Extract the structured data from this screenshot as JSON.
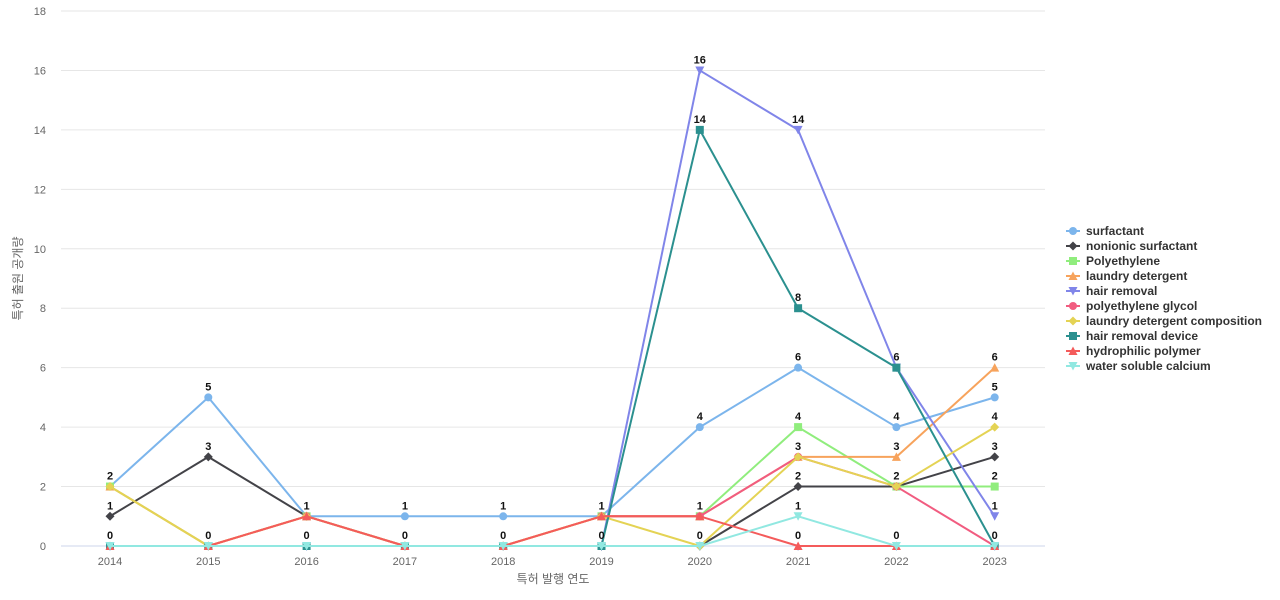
{
  "chart_data": {
    "type": "line",
    "title": "",
    "xlabel": "특허 발행 연도",
    "ylabel": "특허 출원 공개량",
    "x": [
      "2014",
      "2015",
      "2016",
      "2017",
      "2018",
      "2019",
      "2020",
      "2021",
      "2022",
      "2023"
    ],
    "ylim": [
      0,
      18
    ],
    "yticks": [
      0,
      2,
      4,
      6,
      8,
      10,
      12,
      14,
      16,
      18
    ],
    "grid": true,
    "legend_position": "right",
    "series": [
      {
        "name": "surfactant",
        "color": "#7cb5ec",
        "marker": "circle",
        "values": [
          2,
          5,
          1,
          1,
          1,
          1,
          4,
          6,
          4,
          5
        ],
        "labels": [
          "2",
          "5",
          "1",
          "1",
          "1",
          "1",
          "4",
          "6",
          "4",
          "5"
        ]
      },
      {
        "name": "nonionic surfactant",
        "color": "#434348",
        "marker": "diamond",
        "values": [
          1,
          3,
          1,
          0,
          0,
          0,
          0,
          2,
          2,
          3
        ],
        "labels": [
          "1",
          "3",
          "",
          "",
          "",
          "",
          "",
          "2",
          "",
          "3"
        ]
      },
      {
        "name": "Polyethylene",
        "color": "#90ed7d",
        "marker": "square",
        "values": [
          2,
          0,
          1,
          0,
          0,
          1,
          1,
          4,
          2,
          2
        ],
        "labels": [
          "",
          "",
          "",
          "",
          "",
          "",
          "",
          "4",
          "",
          "2"
        ]
      },
      {
        "name": "laundry detergent",
        "color": "#f7a35c",
        "marker": "triangle",
        "values": [
          2,
          0,
          1,
          0,
          0,
          1,
          1,
          3,
          3,
          6
        ],
        "labels": [
          "",
          "",
          "",
          "",
          "",
          "",
          "",
          "",
          "3",
          "6"
        ]
      },
      {
        "name": "hair removal",
        "color": "#8085e9",
        "marker": "triangle-down",
        "values": [
          0,
          0,
          0,
          0,
          0,
          0,
          16,
          14,
          6,
          1
        ],
        "labels": [
          "",
          "",
          "",
          "",
          "",
          "",
          "16",
          "14",
          "",
          "1"
        ]
      },
      {
        "name": "polyethylene glycol",
        "color": "#f15c80",
        "marker": "circle",
        "values": [
          0,
          0,
          1,
          0,
          0,
          1,
          1,
          3,
          2,
          0
        ],
        "labels": [
          "",
          "",
          "",
          "",
          "",
          "",
          "",
          "3",
          "",
          ""
        ]
      },
      {
        "name": "laundry detergent composition",
        "color": "#e4d354",
        "marker": "diamond",
        "values": [
          2,
          0,
          1,
          0,
          0,
          1,
          0,
          3,
          2,
          4
        ],
        "labels": [
          "",
          "",
          "",
          "",
          "",
          "",
          "",
          "",
          "2",
          "4"
        ]
      },
      {
        "name": "hair removal device",
        "color": "#2b908f",
        "marker": "square",
        "values": [
          0,
          0,
          0,
          0,
          0,
          0,
          14,
          8,
          6,
          0
        ],
        "labels": [
          "",
          "",
          "",
          "",
          "",
          "",
          "14",
          "8",
          "6",
          ""
        ]
      },
      {
        "name": "hydrophilic polymer",
        "color": "#f45b5b",
        "marker": "triangle",
        "values": [
          0,
          0,
          1,
          0,
          0,
          1,
          1,
          0,
          0,
          0
        ],
        "labels": [
          "",
          "",
          "",
          "",
          "",
          "",
          "1",
          "0",
          "",
          ""
        ]
      },
      {
        "name": "water soluble calcium",
        "color": "#91e8e1",
        "marker": "triangle-down",
        "values": [
          0,
          0,
          0,
          0,
          0,
          0,
          0,
          1,
          0,
          0
        ],
        "labels": [
          "0",
          "0",
          "0",
          "0",
          "0",
          "0",
          "0",
          "1",
          "0",
          "0"
        ]
      }
    ]
  }
}
